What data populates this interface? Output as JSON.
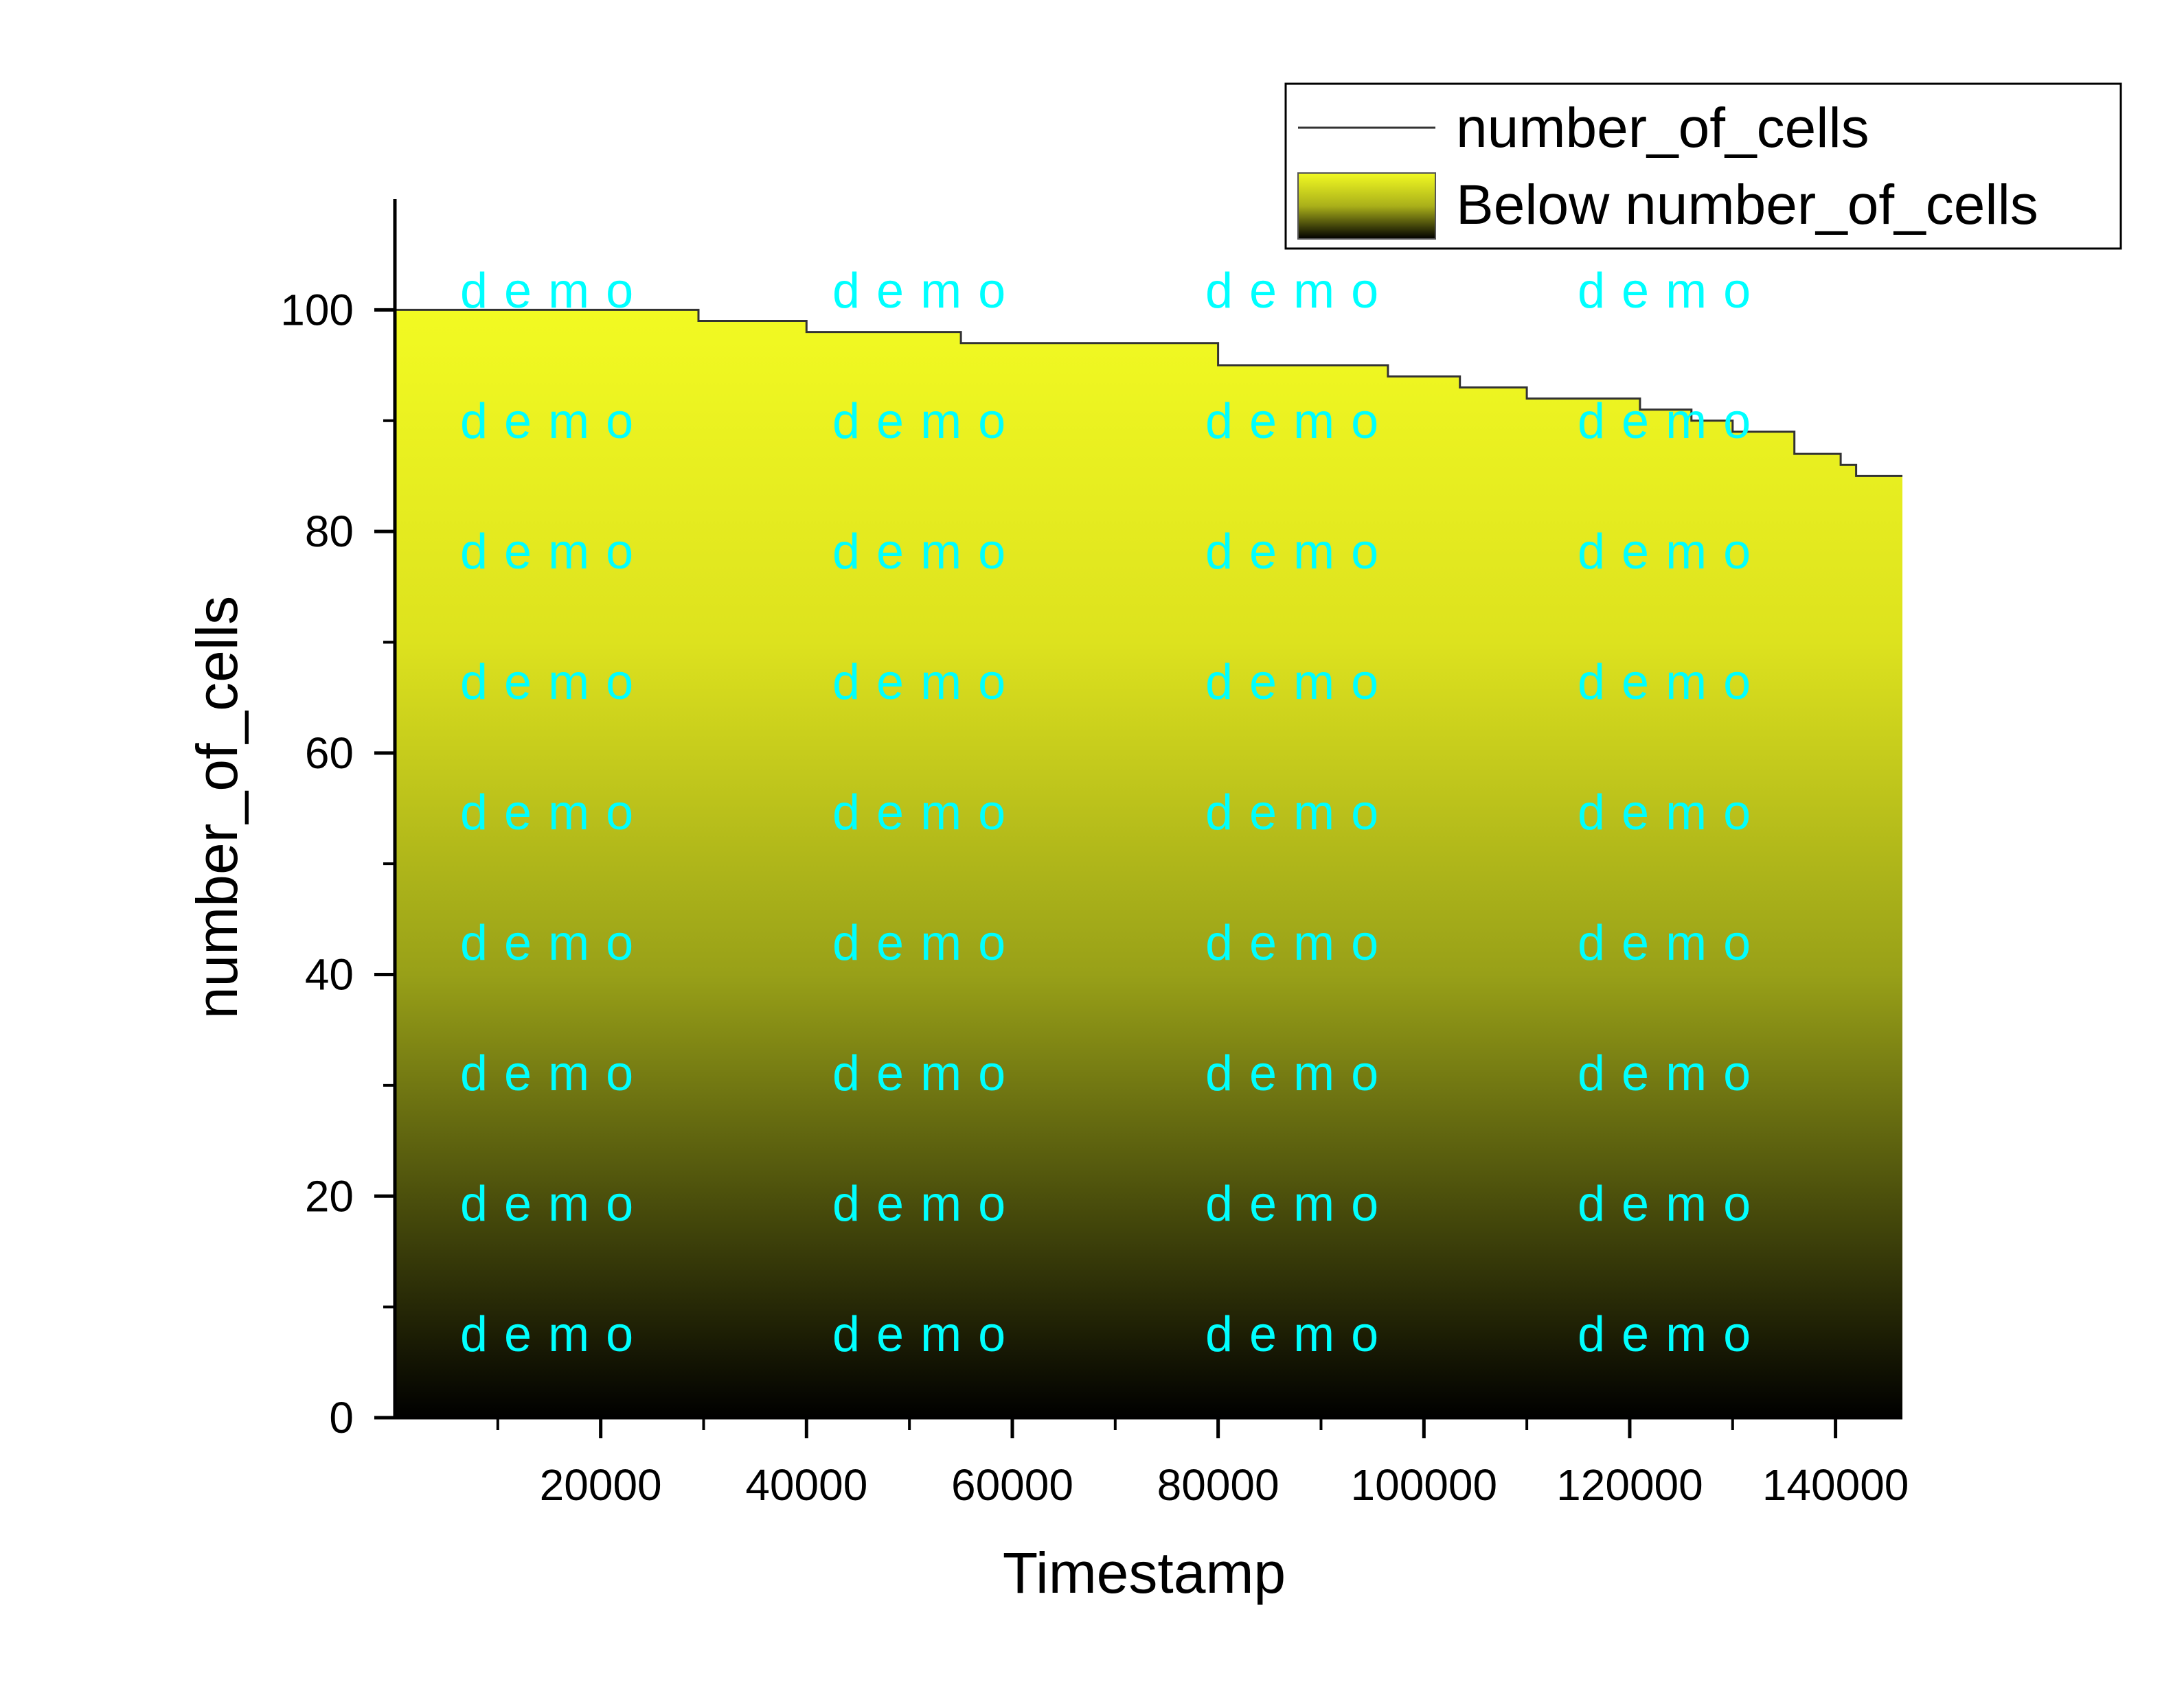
{
  "chart_data": {
    "type": "area",
    "xlabel": "Timestamp",
    "ylabel": "number_of_cells",
    "xlim": [
      0,
      146500
    ],
    "ylim": [
      0,
      110
    ],
    "x_ticks": [
      20000,
      40000,
      60000,
      80000,
      100000,
      120000,
      140000
    ],
    "y_ticks": [
      0,
      20,
      40,
      60,
      80,
      100
    ],
    "grid": false,
    "legend_position": "top-right",
    "step": true,
    "series": [
      {
        "name": "number_of_cells",
        "x": [
          0,
          29500,
          40000,
          55000,
          80000,
          96500,
          103500,
          110000,
          121000,
          126000,
          130000,
          136000,
          140500,
          142000,
          146500
        ],
        "values": [
          100,
          99,
          98,
          97,
          95,
          94,
          93,
          92,
          91,
          90,
          89,
          87,
          86,
          85,
          85
        ]
      }
    ],
    "legend": [
      "number_of_cells",
      "Below number_of_cells"
    ],
    "fill_colors": {
      "top": "#f2fa22",
      "bottom": "#000000"
    },
    "line_color": "#333333",
    "watermark_text": "demo",
    "watermark_color": "#00ffff"
  }
}
